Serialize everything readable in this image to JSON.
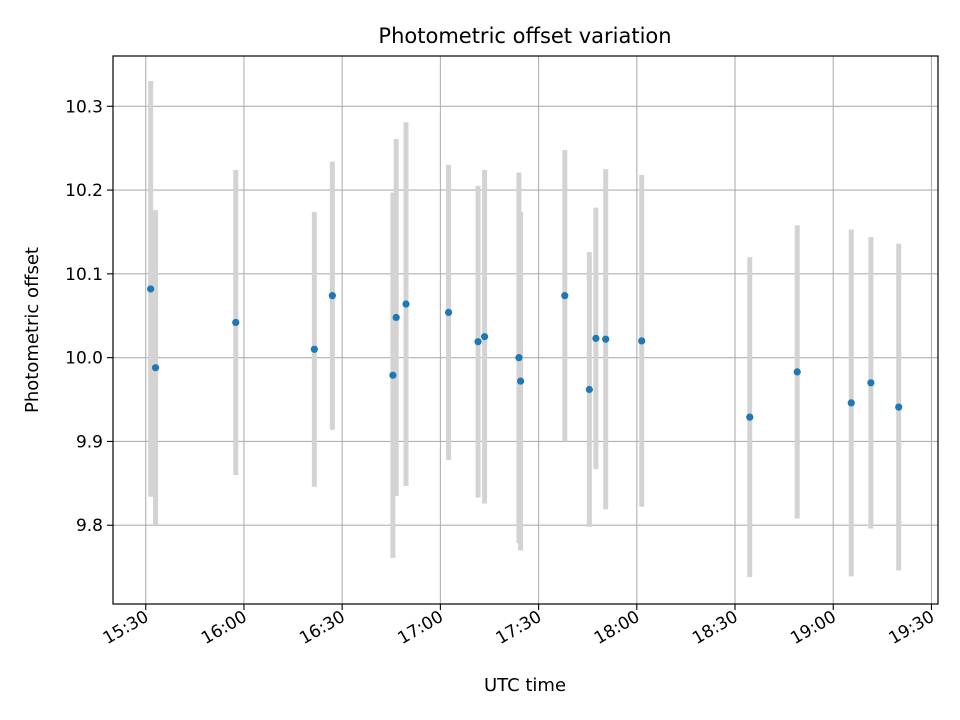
{
  "chart_data": {
    "type": "scatter",
    "title": "Photometric offset variation",
    "xlabel": "UTC time",
    "ylabel": "Photometric offset",
    "grid": true,
    "xlim": [
      "15:20",
      "19:32"
    ],
    "ylim": [
      9.706,
      10.36
    ],
    "x_ticks": [
      "15:30",
      "16:00",
      "16:30",
      "17:00",
      "17:30",
      "18:00",
      "18:30",
      "19:00",
      "19:30"
    ],
    "y_ticks": [
      9.8,
      9.9,
      10.0,
      10.1,
      10.2,
      10.3
    ],
    "y_tick_labels": [
      "9.8",
      "9.9",
      "10.0",
      "10.1",
      "10.2",
      "10.3"
    ],
    "colors": {
      "point": "#1f77b4",
      "errorbar": "#d3d3d3",
      "grid": "#b0b0b0",
      "axes": "#000000"
    },
    "series": [
      {
        "points": [
          {
            "x": "15:31:30",
            "y": 10.082,
            "yerr": 0.248
          },
          {
            "x": "15:33:00",
            "y": 9.988,
            "yerr": 0.188
          },
          {
            "x": "15:57:30",
            "y": 10.042,
            "yerr": 0.182
          },
          {
            "x": "16:21:30",
            "y": 10.01,
            "yerr": 0.164
          },
          {
            "x": "16:27:00",
            "y": 10.074,
            "yerr": 0.16
          },
          {
            "x": "16:45:30",
            "y": 9.979,
            "yerr": 0.218
          },
          {
            "x": "16:46:30",
            "y": 10.048,
            "yerr": 0.213
          },
          {
            "x": "16:49:30",
            "y": 10.064,
            "yerr": 0.217
          },
          {
            "x": "17:02:30",
            "y": 10.054,
            "yerr": 0.176
          },
          {
            "x": "17:11:30",
            "y": 10.019,
            "yerr": 0.186
          },
          {
            "x": "17:13:30",
            "y": 10.025,
            "yerr": 0.199
          },
          {
            "x": "17:24:00",
            "y": 10.0,
            "yerr": 0.221
          },
          {
            "x": "17:24:30",
            "y": 9.972,
            "yerr": 0.202
          },
          {
            "x": "17:38:00",
            "y": 10.074,
            "yerr": 0.174
          },
          {
            "x": "17:45:30",
            "y": 9.962,
            "yerr": 0.164
          },
          {
            "x": "17:47:30",
            "y": 10.023,
            "yerr": 0.156
          },
          {
            "x": "17:50:30",
            "y": 10.022,
            "yerr": 0.203
          },
          {
            "x": "18:01:30",
            "y": 10.02,
            "yerr": 0.198
          },
          {
            "x": "18:34:30",
            "y": 9.929,
            "yerr": 0.191
          },
          {
            "x": "18:49:00",
            "y": 9.983,
            "yerr": 0.175
          },
          {
            "x": "19:05:30",
            "y": 9.946,
            "yerr": 0.207
          },
          {
            "x": "19:11:30",
            "y": 9.97,
            "yerr": 0.174
          },
          {
            "x": "19:20:00",
            "y": 9.941,
            "yerr": 0.195
          }
        ]
      }
    ]
  }
}
